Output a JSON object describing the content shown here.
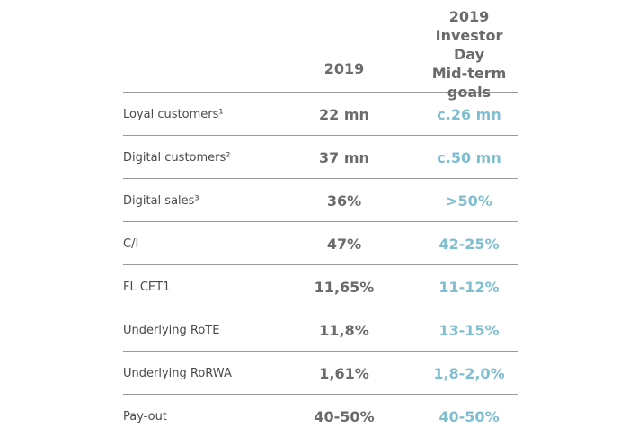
{
  "header": {
    "col_2019": "2019",
    "col_goals_lines": [
      "2019 Investor",
      "Day",
      "Mid-term",
      "goals"
    ]
  },
  "rows": [
    {
      "label": "Loyal customers¹",
      "value_2019": "22 mn",
      "goal": "c.26 mn"
    },
    {
      "label": "Digital customers²",
      "value_2019": "37 mn",
      "goal": "c.50 mn"
    },
    {
      "label": "Digital sales³",
      "value_2019": "36%",
      "goal": ">50%"
    },
    {
      "label": "C/I",
      "value_2019": "47%",
      "goal": "42-25%"
    },
    {
      "label": "FL CET1",
      "value_2019": "11,65%",
      "goal": "11-12%"
    },
    {
      "label": "Underlying RoTE",
      "value_2019": "11,8%",
      "goal": "13-15%"
    },
    {
      "label": "Underlying RoRWA",
      "value_2019": "1,61%",
      "goal": "1,8-2,0%"
    },
    {
      "label": "Pay-out",
      "value_2019": "40-50%",
      "goal": "40-50%"
    }
  ],
  "colors": {
    "label": "#4a4a4a",
    "value": "#6b6b6b",
    "goal": "#7fbdd0",
    "rule": "#9a9a9a"
  }
}
